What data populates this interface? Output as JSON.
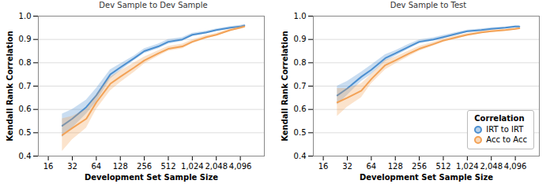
{
  "chart_data": [
    {
      "type": "line",
      "title": "Dev Sample to Dev Sample",
      "x_label": "Development Set Sample Size",
      "y_label": "Kendall Rank Correlation",
      "x": [
        24,
        32,
        48,
        64,
        96,
        128,
        192,
        256,
        384,
        512,
        768,
        1024,
        1536,
        2048,
        3072,
        4096,
        4608
      ],
      "series": [
        {
          "name": "IRT to IRT",
          "color": "#4c8fd0",
          "values": [
            0.53,
            0.56,
            0.61,
            0.66,
            0.75,
            0.78,
            0.82,
            0.85,
            0.87,
            0.89,
            0.9,
            0.92,
            0.93,
            0.94,
            0.95,
            0.955,
            0.96
          ],
          "lower": [
            0.48,
            0.52,
            0.58,
            0.63,
            0.73,
            0.765,
            0.81,
            0.84,
            0.86,
            0.88,
            0.892,
            0.913,
            0.924,
            0.935,
            0.945,
            0.95,
            0.955
          ],
          "upper": [
            0.58,
            0.6,
            0.64,
            0.69,
            0.77,
            0.795,
            0.83,
            0.86,
            0.88,
            0.9,
            0.908,
            0.927,
            0.936,
            0.945,
            0.955,
            0.96,
            0.965
          ]
        },
        {
          "name": "Acc to Acc",
          "color": "#f3a256",
          "values": [
            0.49,
            0.52,
            0.56,
            0.63,
            0.71,
            0.74,
            0.78,
            0.81,
            0.84,
            0.86,
            0.87,
            0.89,
            0.91,
            0.92,
            0.94,
            0.95,
            0.955
          ],
          "lower": [
            0.42,
            0.47,
            0.52,
            0.6,
            0.68,
            0.715,
            0.76,
            0.795,
            0.828,
            0.85,
            0.86,
            0.882,
            0.903,
            0.914,
            0.935,
            0.945,
            0.95
          ],
          "upper": [
            0.56,
            0.57,
            0.6,
            0.66,
            0.74,
            0.765,
            0.8,
            0.825,
            0.852,
            0.87,
            0.88,
            0.898,
            0.917,
            0.926,
            0.945,
            0.955,
            0.96
          ]
        }
      ],
      "xlim": [
        12,
        8192
      ],
      "xticks": [
        16,
        32,
        64,
        128,
        256,
        512,
        {
          "value": 1024,
          "label": "1,024"
        },
        {
          "value": 2048,
          "label": "2,048"
        },
        {
          "value": 4096,
          "label": "4,096"
        }
      ],
      "ylim": [
        0.4,
        1
      ],
      "yticks": [
        0.4,
        0.5,
        0.6,
        0.7,
        0.8,
        0.9,
        {
          "value": 1,
          "label": "1.0"
        }
      ],
      "log": "x",
      "grid": true
    },
    {
      "type": "line",
      "title": "Dev Sample to Test",
      "x_label": "Development Set Sample Size",
      "y_label": "Kendall Rank Correlation",
      "x": [
        24,
        32,
        48,
        64,
        96,
        128,
        192,
        256,
        384,
        512,
        768,
        1024,
        1536,
        2048,
        3072,
        4096,
        4608
      ],
      "series": [
        {
          "name": "IRT to IRT",
          "color": "#4c8fd0",
          "values": [
            0.66,
            0.69,
            0.74,
            0.77,
            0.82,
            0.84,
            0.87,
            0.89,
            0.9,
            0.91,
            0.925,
            0.935,
            0.94,
            0.945,
            0.95,
            0.955,
            0.955
          ],
          "lower": [
            0.62,
            0.66,
            0.72,
            0.75,
            0.805,
            0.828,
            0.86,
            0.882,
            0.893,
            0.903,
            0.919,
            0.93,
            0.935,
            0.94,
            0.946,
            0.951,
            0.951
          ],
          "upper": [
            0.7,
            0.72,
            0.76,
            0.79,
            0.835,
            0.852,
            0.88,
            0.898,
            0.907,
            0.917,
            0.931,
            0.94,
            0.945,
            0.95,
            0.954,
            0.959,
            0.959
          ]
        },
        {
          "name": "Acc to Acc",
          "color": "#f3a256",
          "values": [
            0.63,
            0.65,
            0.68,
            0.73,
            0.79,
            0.81,
            0.84,
            0.86,
            0.88,
            0.895,
            0.91,
            0.92,
            0.93,
            0.935,
            0.94,
            0.945,
            0.948
          ],
          "lower": [
            0.57,
            0.61,
            0.65,
            0.71,
            0.77,
            0.795,
            0.828,
            0.85,
            0.872,
            0.888,
            0.903,
            0.914,
            0.925,
            0.93,
            0.936,
            0.941,
            0.944
          ],
          "upper": [
            0.69,
            0.69,
            0.71,
            0.75,
            0.81,
            0.825,
            0.852,
            0.87,
            0.888,
            0.902,
            0.917,
            0.926,
            0.935,
            0.94,
            0.944,
            0.949,
            0.952
          ]
        }
      ],
      "xlim": [
        12,
        8192
      ],
      "xticks": [
        16,
        32,
        64,
        128,
        256,
        512,
        {
          "value": 1024,
          "label": "1,024"
        },
        {
          "value": 2048,
          "label": "2,048"
        },
        {
          "value": 4096,
          "label": "4,096"
        }
      ],
      "ylim": [
        0.4,
        1
      ],
      "yticks": [
        0.4,
        0.5,
        0.6,
        0.7,
        0.8,
        0.9,
        {
          "value": 1,
          "label": "1.0"
        }
      ],
      "log": "x",
      "grid": true,
      "legend": "bottom-right",
      "legend_title": "Correlation"
    }
  ]
}
